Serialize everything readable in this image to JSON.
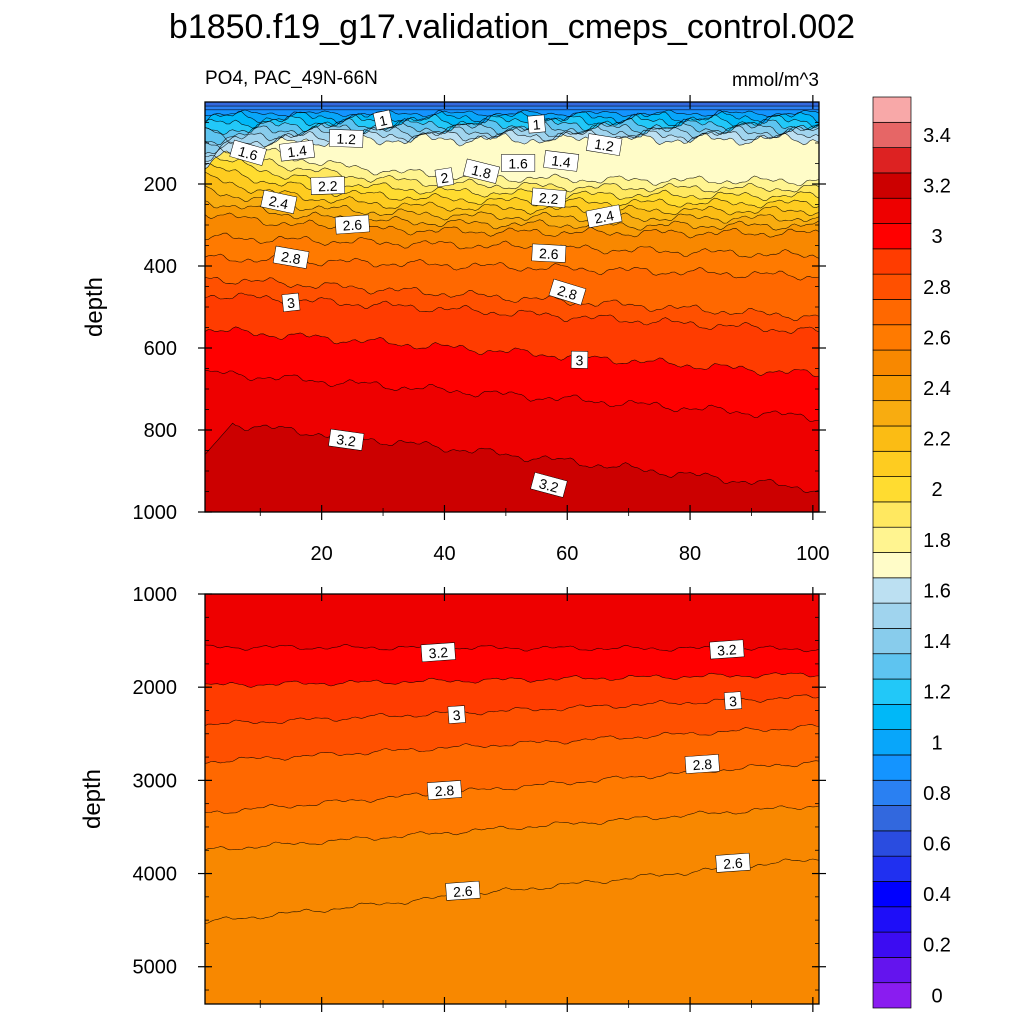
{
  "chart_data": {
    "type": "heatmap",
    "title": "b1850.f19_g17.validation_cmeps_control.002",
    "subtitle_left": "PO4, PAC_49N-66N",
    "subtitle_right": "mmol/m^3",
    "colorbar": {
      "levels": [
        0,
        0.1,
        0.2,
        0.3,
        0.4,
        0.5,
        0.6,
        0.7,
        0.8,
        0.9,
        1,
        1.1,
        1.2,
        1.3,
        1.4,
        1.5,
        1.6,
        1.7,
        1.8,
        1.9,
        2,
        2.1,
        2.2,
        2.3,
        2.4,
        2.5,
        2.6,
        2.7,
        2.8,
        2.9,
        3,
        3.1,
        3.2,
        3.3,
        3.4,
        3.5,
        3.6
      ],
      "colors": [
        "#8a1cf0",
        "#6414ee",
        "#3c0cf2",
        "#1e0ef8",
        "#0000ff",
        "#2030f0",
        "#2a4ce0",
        "#3268de",
        "#2a80f2",
        "#1494ff",
        "#08a6fa",
        "#00b8f8",
        "#22c8f8",
        "#5ec4f0",
        "#88ccec",
        "#a0d4ee",
        "#bce0f2",
        "#fffcc8",
        "#fff490",
        "#ffe860",
        "#ffdc30",
        "#fecc20",
        "#fbbc14",
        "#f8ac10",
        "#f89a04",
        "#f88800",
        "#ff7a00",
        "#ff6800",
        "#ff5000",
        "#ff3c00",
        "#ff0000",
        "#ee0000",
        "#cc0000",
        "#dd2222",
        "#e66666",
        "#f8a8a8"
      ],
      "labels": [
        "0",
        "0.2",
        "0.4",
        "0.6",
        "0.8",
        "1",
        "1.2",
        "1.4",
        "1.6",
        "1.8",
        "2",
        "2.2",
        "2.4",
        "2.6",
        "2.8",
        "3",
        "3.2",
        "3.4"
      ]
    },
    "panels": [
      {
        "name": "upper",
        "ylabel": "depth",
        "xlim": [
          1,
          101
        ],
        "ylim": [
          1000,
          0
        ],
        "yticks": [
          200,
          400,
          600,
          800,
          1000
        ],
        "xticks": [
          20,
          40,
          60,
          80,
          100
        ],
        "contour_labels": [
          {
            "text": "1",
            "x": 30,
            "y": 45
          },
          {
            "text": "1",
            "x": 55,
            "y": 55
          },
          {
            "text": "1.2",
            "x": 24,
            "y": 90
          },
          {
            "text": "1.2",
            "x": 66,
            "y": 105
          },
          {
            "text": "1.6",
            "x": 8,
            "y": 125
          },
          {
            "text": "1.4",
            "x": 16,
            "y": 120
          },
          {
            "text": "1.6",
            "x": 52,
            "y": 150
          },
          {
            "text": "1.4",
            "x": 59,
            "y": 145
          },
          {
            "text": "1.8",
            "x": 46,
            "y": 170
          },
          {
            "text": "2",
            "x": 40,
            "y": 185
          },
          {
            "text": "2.2",
            "x": 21,
            "y": 205
          },
          {
            "text": "2.2",
            "x": 57,
            "y": 235
          },
          {
            "text": "2.4",
            "x": 13,
            "y": 245
          },
          {
            "text": "2.4",
            "x": 66,
            "y": 280
          },
          {
            "text": "2.6",
            "x": 25,
            "y": 300
          },
          {
            "text": "2.6",
            "x": 57,
            "y": 370
          },
          {
            "text": "2.8",
            "x": 15,
            "y": 380
          },
          {
            "text": "2.8",
            "x": 60,
            "y": 465
          },
          {
            "text": "3",
            "x": 15,
            "y": 490
          },
          {
            "text": "3",
            "x": 62,
            "y": 630
          },
          {
            "text": "3.2",
            "x": 24,
            "y": 825
          },
          {
            "text": "3.2",
            "x": 57,
            "y": 935
          }
        ]
      },
      {
        "name": "lower",
        "ylabel": "depth",
        "xlim": [
          1,
          101
        ],
        "ylim": [
          5400,
          1000
        ],
        "yticks": [
          1000,
          2000,
          3000,
          4000,
          5000
        ],
        "xticks": [
          20,
          40,
          60,
          80,
          100
        ],
        "contour_labels": [
          {
            "text": "3.2",
            "x": 39,
            "y": 1630
          },
          {
            "text": "3.2",
            "x": 86,
            "y": 1600
          },
          {
            "text": "3",
            "x": 42,
            "y": 2300
          },
          {
            "text": "3",
            "x": 87,
            "y": 2150
          },
          {
            "text": "2.8",
            "x": 40,
            "y": 3110
          },
          {
            "text": "2.8",
            "x": 82,
            "y": 2830
          },
          {
            "text": "2.6",
            "x": 43,
            "y": 4190
          },
          {
            "text": "2.6",
            "x": 87,
            "y": 3890
          }
        ]
      }
    ]
  }
}
